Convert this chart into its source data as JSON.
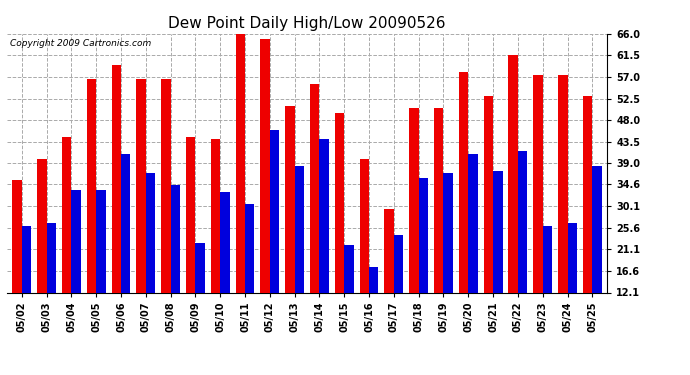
{
  "title": "Dew Point Daily High/Low 20090526",
  "copyright": "Copyright 2009 Cartronics.com",
  "dates": [
    "05/02",
    "05/03",
    "05/04",
    "05/05",
    "05/06",
    "05/07",
    "05/08",
    "05/09",
    "05/10",
    "05/11",
    "05/12",
    "05/13",
    "05/14",
    "05/15",
    "05/16",
    "05/17",
    "05/18",
    "05/19",
    "05/20",
    "05/21",
    "05/22",
    "05/23",
    "05/24",
    "05/25"
  ],
  "highs": [
    35.5,
    40.0,
    44.5,
    56.5,
    59.5,
    56.5,
    56.5,
    44.5,
    44.0,
    66.0,
    65.0,
    51.0,
    55.5,
    49.5,
    40.0,
    29.5,
    50.5,
    50.5,
    58.0,
    53.0,
    61.5,
    57.5,
    57.5,
    53.0
  ],
  "lows": [
    26.0,
    26.5,
    33.5,
    33.5,
    41.0,
    37.0,
    34.5,
    22.5,
    33.0,
    30.5,
    46.0,
    38.5,
    44.0,
    22.0,
    17.5,
    24.0,
    36.0,
    37.0,
    41.0,
    37.5,
    41.5,
    26.0,
    26.5,
    38.5
  ],
  "ylim": [
    12.1,
    66.0
  ],
  "yticks": [
    12.1,
    16.6,
    21.1,
    25.6,
    30.1,
    34.6,
    39.0,
    43.5,
    48.0,
    52.5,
    57.0,
    61.5,
    66.0
  ],
  "high_color": "#ee0000",
  "low_color": "#0000dd",
  "bg_color": "#ffffff",
  "grid_color": "#aaaaaa",
  "bar_width": 0.38,
  "title_fontsize": 11,
  "tick_fontsize": 7,
  "copyright_fontsize": 6.5
}
